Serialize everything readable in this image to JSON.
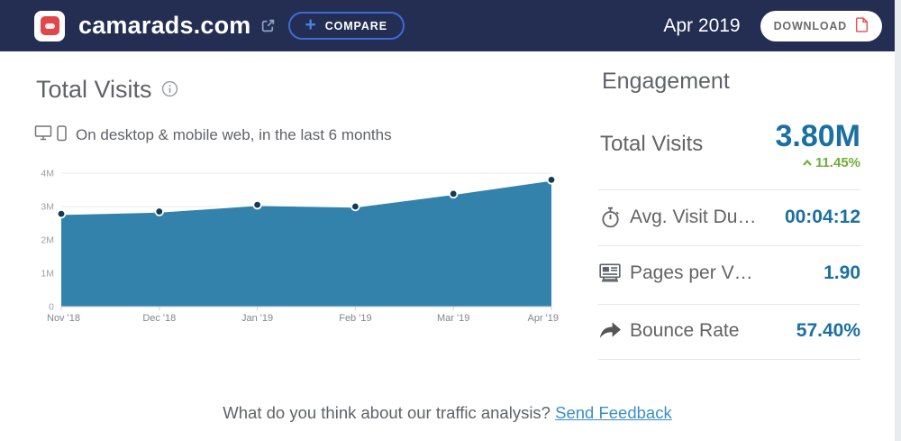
{
  "header": {
    "site": "camarads.com",
    "compare_label": "COMPARE",
    "date": "Apr 2019",
    "download_label": "DOWNLOAD"
  },
  "chart_section": {
    "title": "Total Visits",
    "subtitle": "On desktop & mobile web, in the last 6 months"
  },
  "chart_data": {
    "type": "area",
    "title": "Total Visits",
    "x": [
      "Nov '18",
      "Dec '18",
      "Jan '19",
      "Feb '19",
      "Mar '19",
      "Apr '19"
    ],
    "series": [
      {
        "name": "Total Visits",
        "values": [
          2.78,
          2.85,
          3.05,
          3.0,
          3.38,
          3.8
        ]
      }
    ],
    "unit": "M",
    "ylim": [
      0,
      4
    ],
    "yticks": [
      "0",
      "1M",
      "2M",
      "3M",
      "4M"
    ],
    "grid": true,
    "legend": false
  },
  "engagement": {
    "title": "Engagement",
    "total_visits": {
      "label": "Total Visits",
      "value": "3.80M",
      "change": "11.45%",
      "direction": "up"
    },
    "metrics": [
      {
        "icon": "stopwatch-icon",
        "label": "Avg. Visit Du…",
        "value": "00:04:12"
      },
      {
        "icon": "pages-icon",
        "label": "Pages per V…",
        "value": "1.90"
      },
      {
        "icon": "bounce-arrow-icon",
        "label": "Bounce Rate",
        "value": "57.40%"
      }
    ]
  },
  "footer": {
    "question": "What do you think about our traffic analysis?",
    "link": "Send Feedback"
  },
  "colors": {
    "header_bg": "#232e52",
    "metric_blue": "#1a6fa3",
    "positive_green": "#6fae3a",
    "chart_fill": "#2478a6",
    "chart_point": "#173a52",
    "link_blue": "#3b8fc7"
  }
}
